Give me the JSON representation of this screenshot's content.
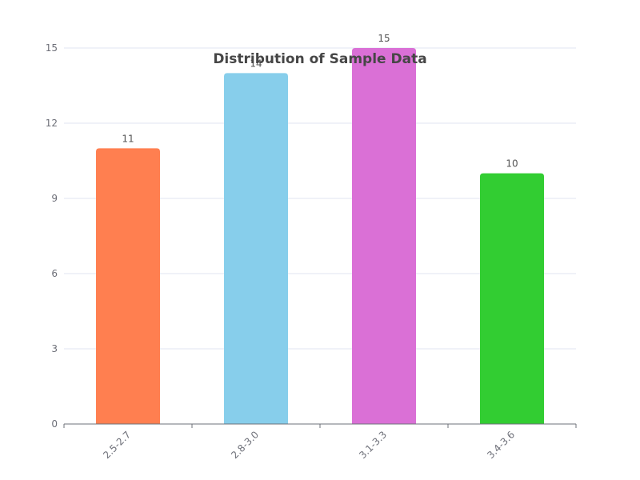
{
  "chart_data": {
    "type": "bar",
    "title": "Distribution of Sample Data",
    "categories": [
      "2.5-2.7",
      "2.8-3.0",
      "3.1-3.3",
      "3.4-3.6"
    ],
    "values": [
      11,
      14,
      15,
      10
    ],
    "colors": [
      "#ff7f50",
      "#87ceeb",
      "#da70d6",
      "#32cd32"
    ],
    "ylim": [
      0,
      15
    ],
    "yticks": [
      0,
      3,
      6,
      9,
      12,
      15
    ],
    "grid": true,
    "data_labels": true
  }
}
